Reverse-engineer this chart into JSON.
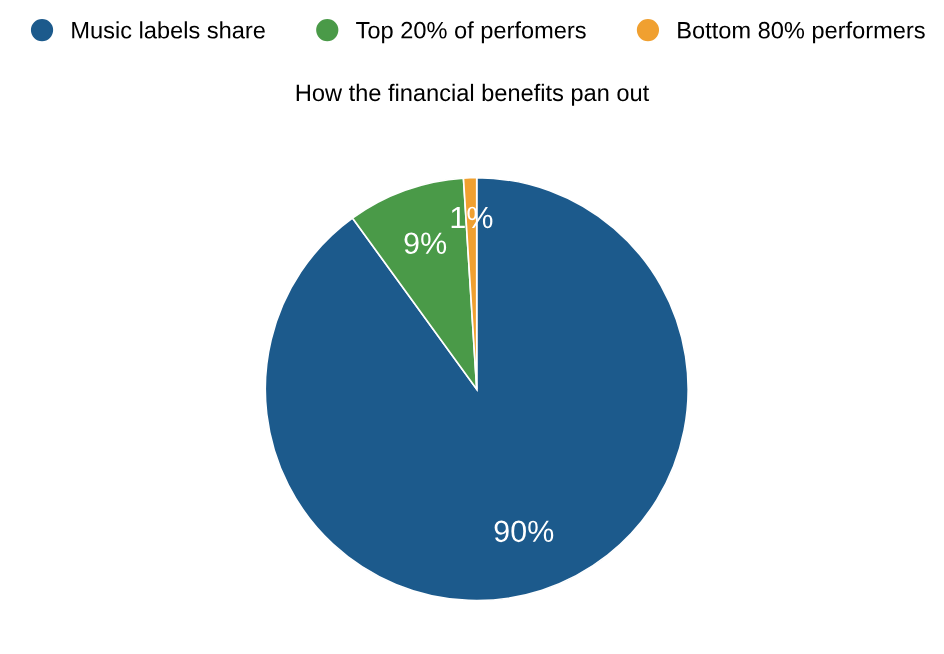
{
  "chart_data": {
    "type": "pie",
    "title": "How the financial benefits pan out",
    "categories": [
      "Music labels share",
      "Top 20% of perfomers",
      "Bottom 80% performers"
    ],
    "values": [
      90,
      9,
      1
    ],
    "colors": [
      "#1c5a8c",
      "#4a9a48",
      "#f0a030"
    ],
    "value_labels": [
      "90%",
      "9%",
      "1%"
    ],
    "legend": "top"
  }
}
